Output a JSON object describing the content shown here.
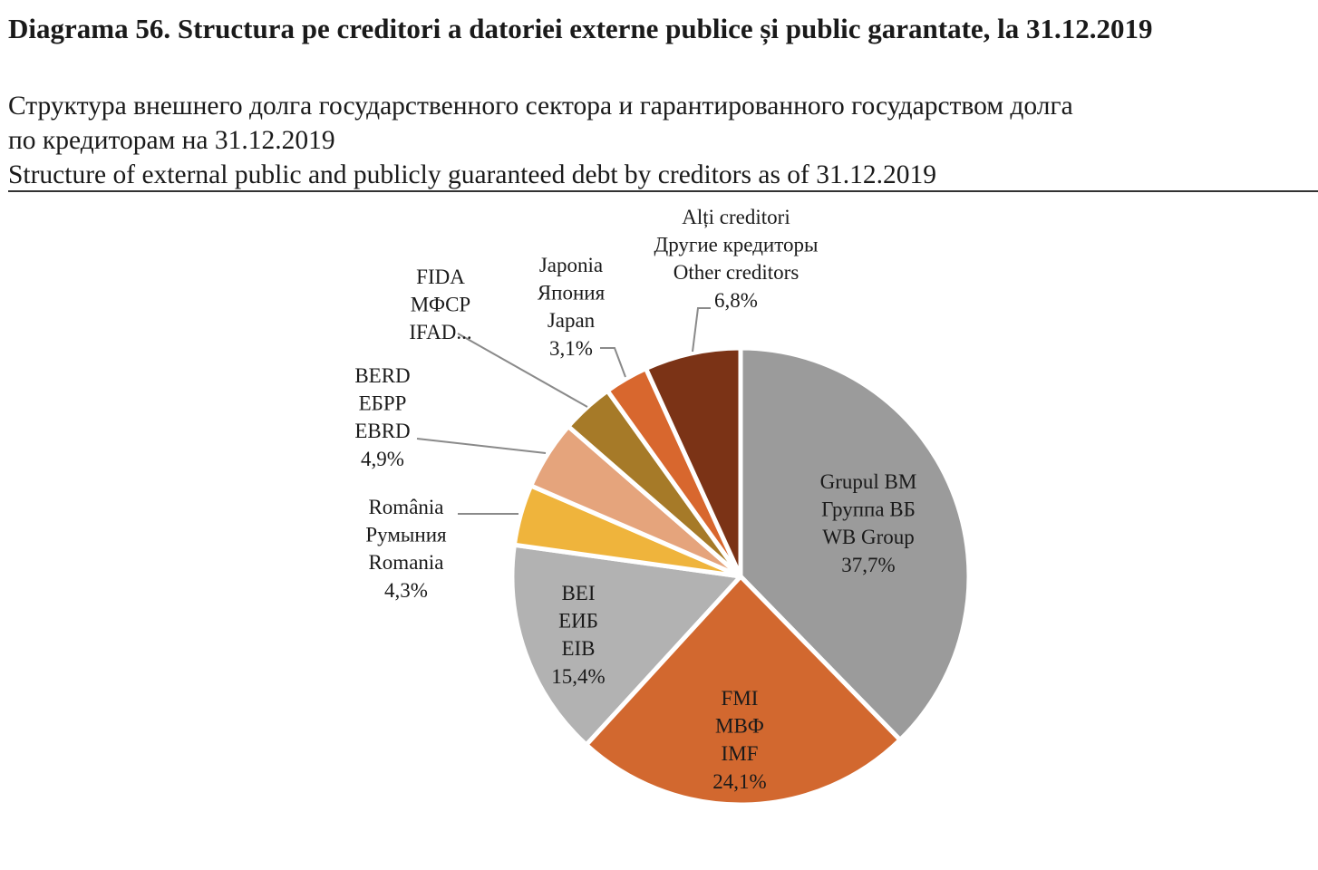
{
  "chart_data": {
    "type": "pie",
    "title": "Diagrama 56. Structura pe creditori a datoriei externe publice și public garantate, la 31.12.2019",
    "subtitle_ru_1": "Структура внешнего долга государственного сектора и гарантированного государством долга",
    "subtitle_ru_2": "по кредиторам на 31.12.2019",
    "subtitle_en": "Structure of external public and publicly guaranteed  debt by creditors as of 31.12.2019",
    "unit": "%",
    "start": "12 o'clock, clockwise",
    "slices": [
      {
        "name": "WB Group",
        "value": 37.7,
        "color": "#9b9b9b",
        "label": [
          "Grupul BM",
          "Группа ВБ",
          "WB Group",
          "37,7%"
        ]
      },
      {
        "name": "IMF",
        "value": 24.1,
        "color": "#d2682f",
        "label": [
          "FMI",
          "МВФ",
          "IMF",
          "24,1%"
        ]
      },
      {
        "name": "EIB",
        "value": 15.4,
        "color": "#b2b2b2",
        "label": [
          "BEI",
          "ЕИБ",
          "EIB",
          "15,4%"
        ]
      },
      {
        "name": "Romania",
        "value": 4.3,
        "color": "#efb43c",
        "label": [
          "România",
          "Румыния",
          "Romania",
          "4,3%"
        ]
      },
      {
        "name": "EBRD",
        "value": 4.9,
        "color": "#e5a47c",
        "label": [
          "BERD",
          "ЕБРР",
          "EBRD",
          "4,9%"
        ]
      },
      {
        "name": "IFAD",
        "value": 3.7,
        "color": "#a67a28",
        "label": [
          "FIDA",
          "МФСР",
          "IFAD..."
        ]
      },
      {
        "name": "Japan",
        "value": 3.1,
        "color": "#d8672e",
        "label": [
          "Japonia",
          "Япония",
          "Japan",
          "3,1%"
        ]
      },
      {
        "name": "Other creditors",
        "value": 6.8,
        "color": "#7b3316",
        "label": [
          "Alți creditori",
          "Другие кредиторы",
          "Other creditors",
          "6,8%"
        ]
      }
    ]
  }
}
